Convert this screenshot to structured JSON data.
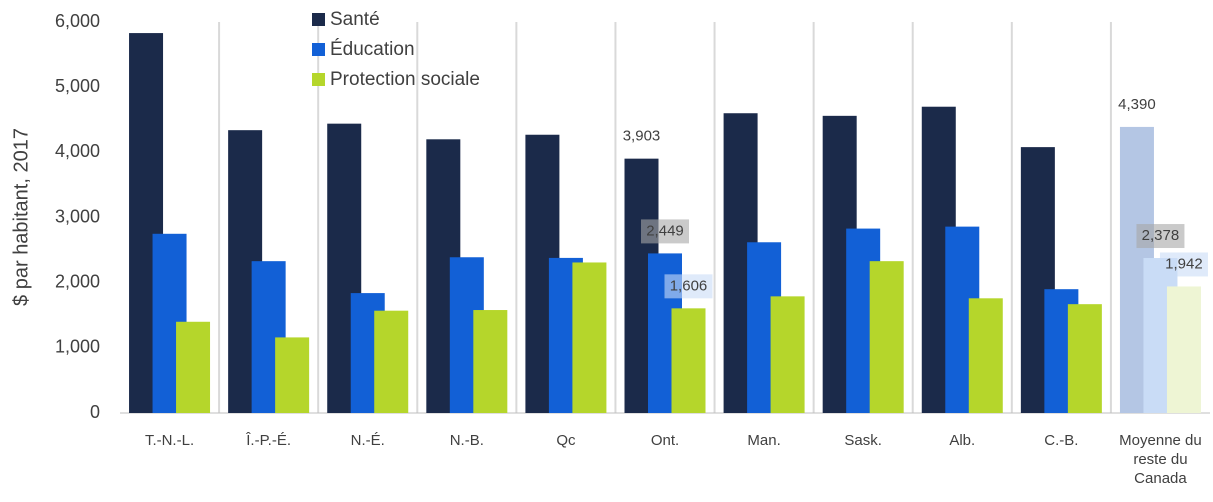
{
  "chart_data": {
    "type": "bar",
    "ylabel": "$ par habitant, 2017",
    "categories": [
      "T.-N.-L.",
      "Î.-P.-É.",
      "N.-É.",
      "N.-B.",
      "Qc",
      "Ont.",
      "Man.",
      "Sask.",
      "Alb.",
      "C.-B.",
      "Moyenne du reste du Canada"
    ],
    "series": [
      {
        "name": "Santé",
        "color": "#1b2a4a",
        "last_color": "#b4c6e4",
        "values": [
          5830,
          4340,
          4440,
          4200,
          4270,
          3903,
          4600,
          4560,
          4700,
          4080,
          4390
        ],
        "value_labels": [
          null,
          null,
          null,
          null,
          null,
          "3,903",
          null,
          null,
          null,
          null,
          "4,390"
        ]
      },
      {
        "name": "Éducation",
        "color": "#1260d6",
        "last_color": "#c9dcf6",
        "values": [
          2750,
          2330,
          1840,
          2390,
          2380,
          2449,
          2620,
          2830,
          2860,
          1900,
          2378
        ],
        "value_labels": [
          null,
          null,
          null,
          null,
          null,
          "2,449",
          null,
          null,
          null,
          null,
          "2,378"
        ]
      },
      {
        "name": "Protection sociale",
        "color": "#b5d62b",
        "last_color": "#eef5d4",
        "values": [
          1400,
          1160,
          1570,
          1580,
          2310,
          1606,
          1790,
          2330,
          1760,
          1670,
          1942
        ],
        "value_labels": [
          null,
          null,
          null,
          null,
          null,
          "1,606",
          null,
          null,
          null,
          null,
          "1,942"
        ]
      }
    ],
    "ylim": [
      0,
      6000
    ],
    "yticks": [
      0,
      {
        "value": 1000,
        "label": "1,000"
      },
      {
        "value": 2000,
        "label": "2,000"
      },
      {
        "value": 3000,
        "label": "3,000"
      },
      {
        "value": 4000,
        "label": "4,000"
      },
      {
        "value": 5000,
        "label": "5,000"
      },
      {
        "value": 6000,
        "label": "6,000"
      }
    ],
    "category_separators": true,
    "legend": "top"
  }
}
